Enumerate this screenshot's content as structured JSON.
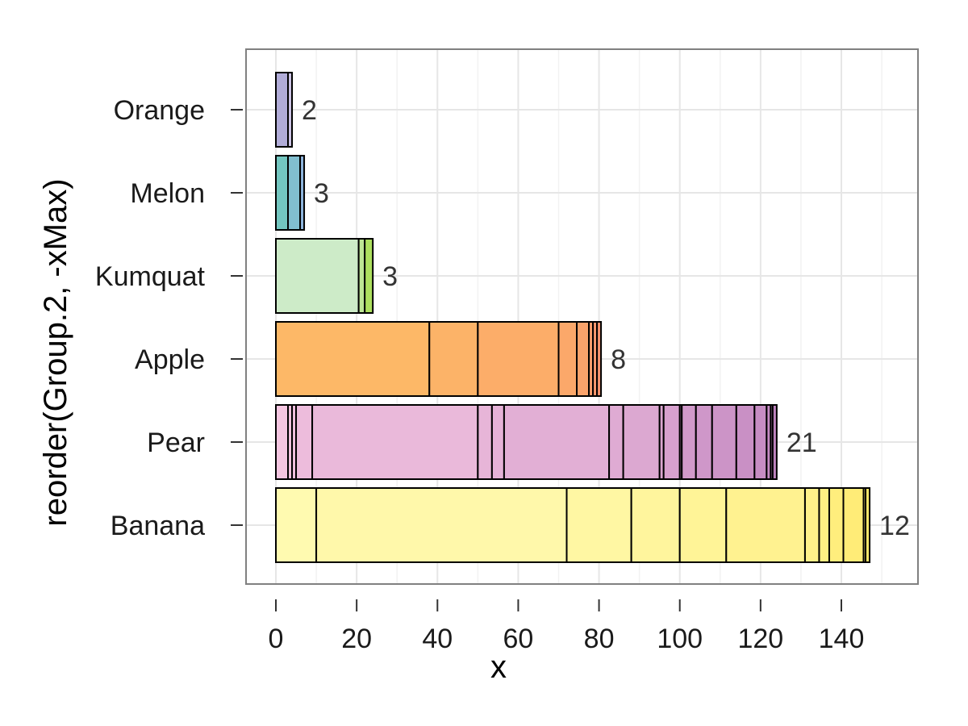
{
  "chart_data": {
    "type": "bar",
    "orientation": "horizontal",
    "stacked": true,
    "xlabel": "x",
    "ylabel": "reorder(Group.2, -xMax)",
    "xlim": [
      -7.5,
      159
    ],
    "xticks": [
      0,
      20,
      40,
      60,
      80,
      100,
      120,
      140
    ],
    "grid": true,
    "categories": [
      "Banana",
      "Pear",
      "Apple",
      "Kumquat",
      "Melon",
      "Orange"
    ],
    "bars": [
      {
        "category": "Banana",
        "count_label": "12",
        "start_color": "#FFFAB0",
        "end_color": "#FFE96A",
        "boundaries": [
          0,
          10,
          72,
          88,
          100,
          111.5,
          131,
          134.5,
          137,
          140.5,
          145.5,
          146,
          147
        ]
      },
      {
        "category": "Pear",
        "count_label": "21",
        "start_color": "#F5C6E1",
        "end_color": "#BE83BE",
        "boundaries": [
          0,
          3,
          4,
          5,
          9,
          50,
          53.5,
          56.5,
          82.5,
          86,
          95,
          96,
          100,
          100.5,
          104,
          108,
          114,
          118.5,
          121.5,
          122.5,
          123,
          124
        ]
      },
      {
        "category": "Apple",
        "count_label": "8",
        "start_color": "#FDB867",
        "end_color": "#F8936E",
        "boundaries": [
          0,
          38,
          50,
          70,
          74.5,
          77.5,
          78.5,
          79.5,
          80.5
        ]
      },
      {
        "category": "Kumquat",
        "count_label": "3",
        "start_color": "#CDEBC8",
        "end_color": "#ADE05F",
        "boundaries": [
          0,
          20.5,
          22,
          24
        ]
      },
      {
        "category": "Melon",
        "count_label": "3",
        "start_color": "#73C6C0",
        "end_color": "#8FB6DE",
        "boundaries": [
          0,
          3,
          6,
          7
        ]
      },
      {
        "category": "Orange",
        "count_label": "2",
        "start_color": "#B1ACD8",
        "end_color": "#CEC6E6",
        "boundaries": [
          0,
          3,
          4
        ]
      }
    ]
  }
}
